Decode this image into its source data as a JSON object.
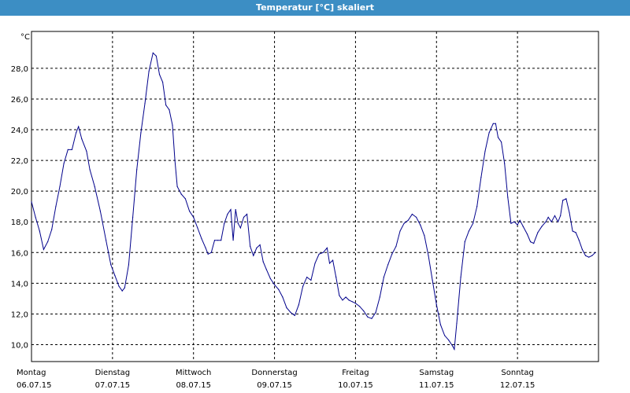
{
  "window": {
    "title": "Temperatur [°C] skaliert",
    "title_bar_color": "#3c8ec4"
  },
  "chart_data": {
    "type": "line",
    "title": "Temperatur [°C] skaliert",
    "unit_label": "°C",
    "xlabel": "",
    "ylabel": "",
    "ylim": [
      8.9,
      30.4
    ],
    "xlim": [
      0,
      7
    ],
    "grid": true,
    "grid_style": "dashed",
    "line_color": "#00008b",
    "x_ticks": [
      {
        "x": 0,
        "day": "Montag",
        "date": "06.07.15"
      },
      {
        "x": 1,
        "day": "Dienstag",
        "date": "07.07.15"
      },
      {
        "x": 2,
        "day": "Mittwoch",
        "date": "08.07.15"
      },
      {
        "x": 3,
        "day": "Donnerstag",
        "date": "09.07.15"
      },
      {
        "x": 4,
        "day": "Freitag",
        "date": "10.07.15"
      },
      {
        "x": 5,
        "day": "Samstag",
        "date": "11.07.15"
      },
      {
        "x": 6,
        "day": "Sonntag",
        "date": "12.07.15"
      }
    ],
    "y_ticks": [
      {
        "value": 10,
        "label": "10,0"
      },
      {
        "value": 12,
        "label": "12,0"
      },
      {
        "value": 14,
        "label": "14,0"
      },
      {
        "value": 16,
        "label": "16,0"
      },
      {
        "value": 18,
        "label": "18,0"
      },
      {
        "value": 20,
        "label": "20,0"
      },
      {
        "value": 22,
        "label": "22,0"
      },
      {
        "value": 24,
        "label": "24,0"
      },
      {
        "value": 26,
        "label": "26,0"
      },
      {
        "value": 28,
        "label": "28,0"
      }
    ],
    "series": [
      {
        "points": [
          [
            0.0,
            19.3
          ],
          [
            0.05,
            18.3
          ],
          [
            0.1,
            17.4
          ],
          [
            0.15,
            16.2
          ],
          [
            0.2,
            16.7
          ],
          [
            0.25,
            17.5
          ],
          [
            0.3,
            19.0
          ],
          [
            0.35,
            20.3
          ],
          [
            0.4,
            21.8
          ],
          [
            0.45,
            22.7
          ],
          [
            0.5,
            22.7
          ],
          [
            0.55,
            23.8
          ],
          [
            0.58,
            24.2
          ],
          [
            0.62,
            23.4
          ],
          [
            0.68,
            22.6
          ],
          [
            0.72,
            21.4
          ],
          [
            0.78,
            20.3
          ],
          [
            0.85,
            18.7
          ],
          [
            0.92,
            16.8
          ],
          [
            0.98,
            15.2
          ],
          [
            1.03,
            14.5
          ],
          [
            1.08,
            13.8
          ],
          [
            1.12,
            13.5
          ],
          [
            1.15,
            13.7
          ],
          [
            1.2,
            15.2
          ],
          [
            1.25,
            18.3
          ],
          [
            1.3,
            21.4
          ],
          [
            1.35,
            23.8
          ],
          [
            1.4,
            25.7
          ],
          [
            1.45,
            27.8
          ],
          [
            1.5,
            29.0
          ],
          [
            1.54,
            28.8
          ],
          [
            1.58,
            27.6
          ],
          [
            1.62,
            27.1
          ],
          [
            1.66,
            25.6
          ],
          [
            1.7,
            25.3
          ],
          [
            1.74,
            24.3
          ],
          [
            1.77,
            22.0
          ],
          [
            1.8,
            20.3
          ],
          [
            1.85,
            19.8
          ],
          [
            1.9,
            19.5
          ],
          [
            1.95,
            18.7
          ],
          [
            2.0,
            18.3
          ],
          [
            2.05,
            17.6
          ],
          [
            2.1,
            16.9
          ],
          [
            2.15,
            16.3
          ],
          [
            2.18,
            15.9
          ],
          [
            2.22,
            16.0
          ],
          [
            2.26,
            16.8
          ],
          [
            2.3,
            16.8
          ],
          [
            2.34,
            16.8
          ],
          [
            2.38,
            17.9
          ],
          [
            2.42,
            18.5
          ],
          [
            2.46,
            18.8
          ],
          [
            2.49,
            16.8
          ],
          [
            2.52,
            18.8
          ],
          [
            2.55,
            17.9
          ],
          [
            2.58,
            17.6
          ],
          [
            2.62,
            18.3
          ],
          [
            2.66,
            18.5
          ],
          [
            2.7,
            16.4
          ],
          [
            2.74,
            15.8
          ],
          [
            2.78,
            16.3
          ],
          [
            2.82,
            16.5
          ],
          [
            2.86,
            15.4
          ],
          [
            2.9,
            14.9
          ],
          [
            2.95,
            14.3
          ],
          [
            3.0,
            13.9
          ],
          [
            3.05,
            13.6
          ],
          [
            3.1,
            13.1
          ],
          [
            3.15,
            12.4
          ],
          [
            3.2,
            12.1
          ],
          [
            3.25,
            11.9
          ],
          [
            3.3,
            12.6
          ],
          [
            3.35,
            13.8
          ],
          [
            3.4,
            14.4
          ],
          [
            3.45,
            14.2
          ],
          [
            3.5,
            15.3
          ],
          [
            3.55,
            15.9
          ],
          [
            3.6,
            16.0
          ],
          [
            3.65,
            16.3
          ],
          [
            3.68,
            15.3
          ],
          [
            3.72,
            15.5
          ],
          [
            3.76,
            14.4
          ],
          [
            3.8,
            13.2
          ],
          [
            3.84,
            12.9
          ],
          [
            3.88,
            13.1
          ],
          [
            3.92,
            12.9
          ],
          [
            3.96,
            12.8
          ],
          [
            4.0,
            12.7
          ],
          [
            4.05,
            12.5
          ],
          [
            4.1,
            12.2
          ],
          [
            4.15,
            11.8
          ],
          [
            4.2,
            11.7
          ],
          [
            4.25,
            12.1
          ],
          [
            4.3,
            13.1
          ],
          [
            4.35,
            14.4
          ],
          [
            4.4,
            15.2
          ],
          [
            4.45,
            15.9
          ],
          [
            4.5,
            16.4
          ],
          [
            4.55,
            17.4
          ],
          [
            4.6,
            17.9
          ],
          [
            4.65,
            18.1
          ],
          [
            4.7,
            18.5
          ],
          [
            4.75,
            18.3
          ],
          [
            4.8,
            17.8
          ],
          [
            4.85,
            17.1
          ],
          [
            4.9,
            15.8
          ],
          [
            4.95,
            14.2
          ],
          [
            5.0,
            12.6
          ],
          [
            5.05,
            11.3
          ],
          [
            5.1,
            10.6
          ],
          [
            5.15,
            10.3
          ],
          [
            5.2,
            9.9
          ],
          [
            5.22,
            9.7
          ],
          [
            5.25,
            11.4
          ],
          [
            5.3,
            14.4
          ],
          [
            5.35,
            16.7
          ],
          [
            5.4,
            17.4
          ],
          [
            5.45,
            17.9
          ],
          [
            5.5,
            19.0
          ],
          [
            5.55,
            20.9
          ],
          [
            5.6,
            22.6
          ],
          [
            5.65,
            23.8
          ],
          [
            5.7,
            24.4
          ],
          [
            5.73,
            24.4
          ],
          [
            5.76,
            23.5
          ],
          [
            5.8,
            23.2
          ],
          [
            5.84,
            21.8
          ],
          [
            5.88,
            19.6
          ],
          [
            5.92,
            17.9
          ],
          [
            5.96,
            18.0
          ],
          [
            6.0,
            17.8
          ],
          [
            6.03,
            18.1
          ],
          [
            6.07,
            17.7
          ],
          [
            6.12,
            17.2
          ],
          [
            6.16,
            16.7
          ],
          [
            6.2,
            16.6
          ],
          [
            6.25,
            17.3
          ],
          [
            6.3,
            17.7
          ],
          [
            6.35,
            18.0
          ],
          [
            6.38,
            18.3
          ],
          [
            6.42,
            18.0
          ],
          [
            6.46,
            18.4
          ],
          [
            6.5,
            18.0
          ],
          [
            6.53,
            18.4
          ],
          [
            6.56,
            19.4
          ],
          [
            6.6,
            19.5
          ],
          [
            6.64,
            18.6
          ],
          [
            6.68,
            17.4
          ],
          [
            6.72,
            17.3
          ],
          [
            6.76,
            16.8
          ],
          [
            6.8,
            16.2
          ],
          [
            6.84,
            15.8
          ],
          [
            6.88,
            15.7
          ],
          [
            6.92,
            15.8
          ],
          [
            6.96,
            16.0
          ]
        ]
      }
    ]
  }
}
